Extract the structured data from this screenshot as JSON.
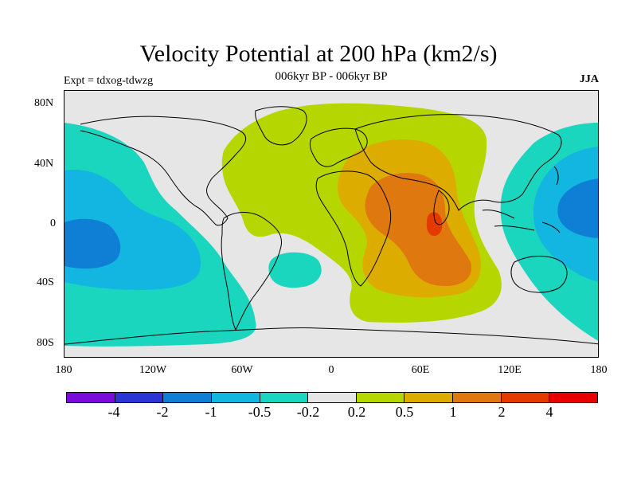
{
  "title": "Velocity Potential at 200 hPa (km2/s)",
  "subtitle": "006kyr BP - 006kyr BP",
  "experiment_label": "Expt = tdxog-tdwzg",
  "season": "JJA",
  "map": {
    "projection": "cylindrical equidistant",
    "lon_range": [
      -180,
      180
    ],
    "lat_range": [
      -90,
      90
    ],
    "y_ticks": [
      "80N",
      "40N",
      "0",
      "40S",
      "80S"
    ],
    "x_ticks": [
      "180",
      "120W",
      "60W",
      "0",
      "60E",
      "120E",
      "180"
    ],
    "background_color": "#e6e6e6",
    "coastline_color": "#000000"
  },
  "colorbar": {
    "colors": [
      "#7a0bd8",
      "#2a35d4",
      "#0f7fd6",
      "#12b6e0",
      "#1ad6bf",
      "#e6e6e6",
      "#b6d600",
      "#dcac00",
      "#e07810",
      "#e43a00",
      "#e80000"
    ],
    "labels": [
      "-4",
      "-2",
      "-1",
      "-0.5",
      "-0.2",
      "0.2",
      "0.5",
      "1",
      "2",
      "4"
    ]
  }
}
